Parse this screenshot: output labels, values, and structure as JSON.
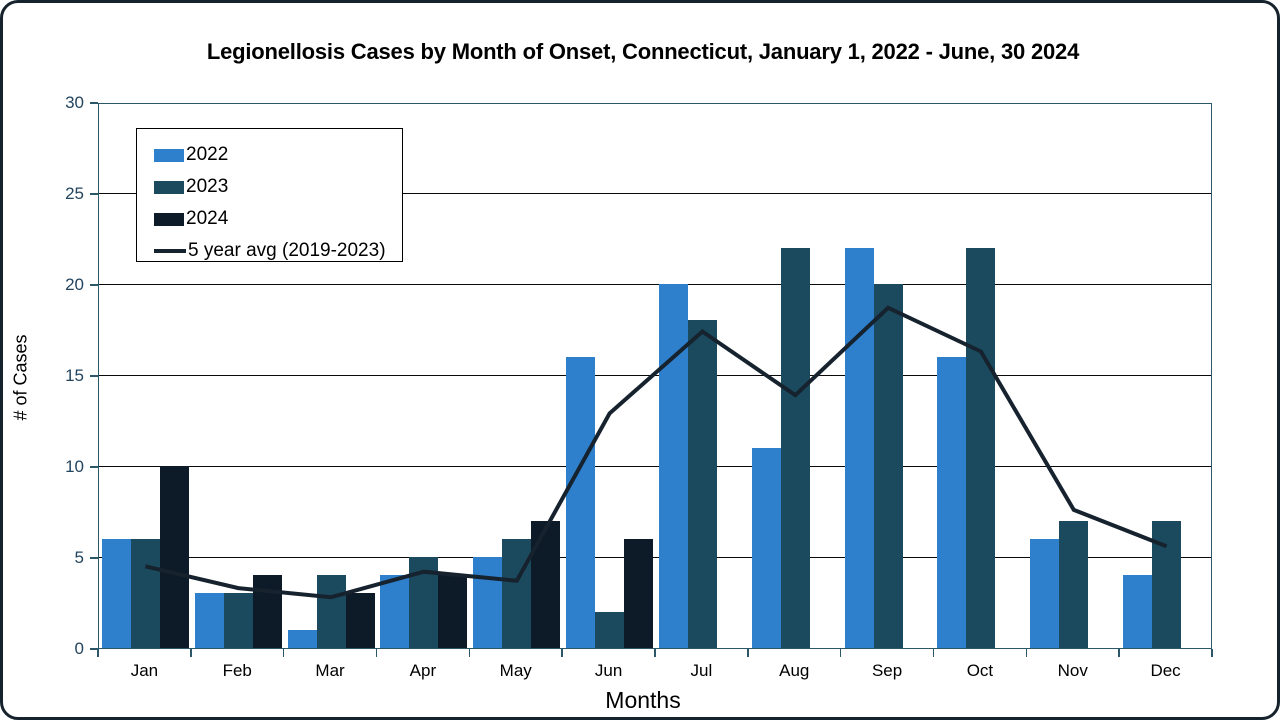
{
  "window": {
    "background": "#ffffff",
    "frame_border_color": "#16222e"
  },
  "chart_data": {
    "type": "bar",
    "title": "Legionellosis Cases by Month of Onset, Connecticut, January 1, 2022 - June, 30 2024",
    "xlabel": "Months",
    "ylabel": "# of Cases",
    "ylim": [
      0,
      30
    ],
    "yticks": [
      0,
      5,
      10,
      15,
      20,
      25,
      30
    ],
    "grid": "horizontal",
    "legend_position": "top-left-inside",
    "categories": [
      "Jan",
      "Feb",
      "Mar",
      "Apr",
      "May",
      "Jun",
      "Jul",
      "Aug",
      "Sep",
      "Oct",
      "Nov",
      "Dec"
    ],
    "series": [
      {
        "name": "2022",
        "kind": "bar",
        "color": "#2E80CC",
        "values": [
          6,
          3,
          1,
          4,
          5,
          16,
          20,
          11,
          22,
          16,
          6,
          4
        ]
      },
      {
        "name": "2023",
        "kind": "bar",
        "color": "#1B4A5E",
        "values": [
          6,
          3,
          4,
          5,
          6,
          2,
          18,
          22,
          20,
          22,
          7,
          7
        ]
      },
      {
        "name": "2024",
        "kind": "bar",
        "color": "#0D1A28",
        "values": [
          10,
          4,
          3,
          4,
          7,
          6,
          null,
          null,
          null,
          null,
          null,
          null
        ]
      },
      {
        "name": "5 year avg (2019-2023)",
        "kind": "line",
        "color": "#16222E",
        "values": [
          4.6,
          3.4,
          2.9,
          4.3,
          3.8,
          13,
          17.5,
          14,
          18.8,
          16.4,
          7.7,
          5.7
        ]
      }
    ],
    "colors": {
      "axis_border": "#2b5768",
      "gridline": "#0a0a0a",
      "ytick_text": "#24455e",
      "xtick_text": "#000000"
    }
  }
}
